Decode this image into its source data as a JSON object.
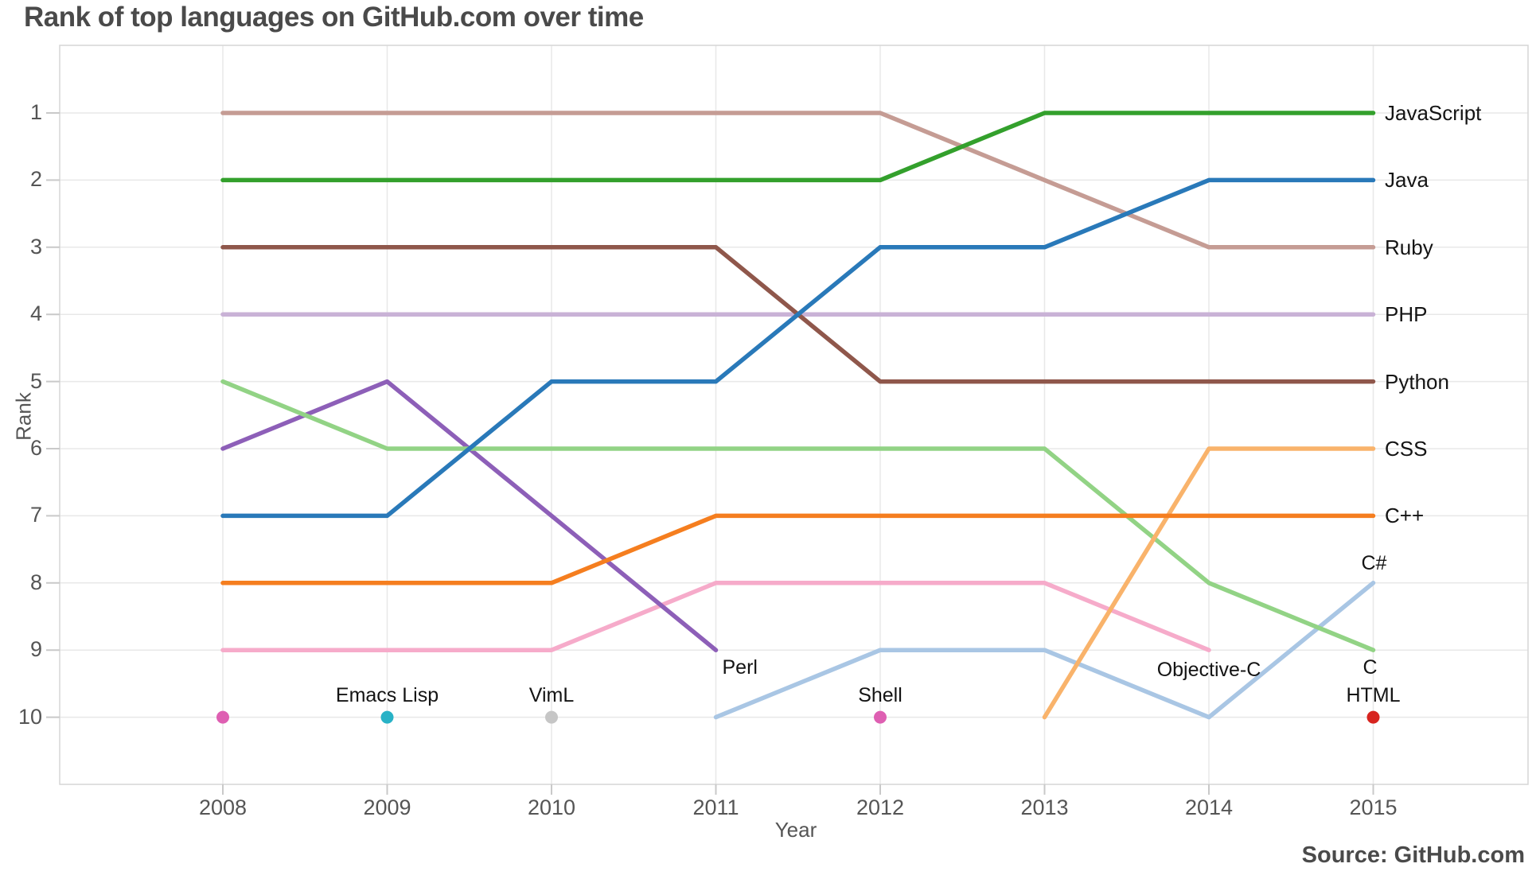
{
  "title": "Rank of top languages on GitHub.com over time",
  "source": "Source: GitHub.com",
  "styles": {
    "grid_color": "#e8e8e8",
    "frame_color": "#d6d6d6",
    "tick_color": "#c9c9c9",
    "axis_text_color": "#555555",
    "label_text_color": "#141414",
    "title_color": "#4a4a4a"
  },
  "chart_data": {
    "type": "line",
    "title": "Rank of top languages on GitHub.com over time",
    "xlabel": "Year",
    "ylabel": "Rank",
    "x_ticks": [
      2008,
      2009,
      2010,
      2011,
      2012,
      2013,
      2014,
      2015
    ],
    "y_ticks": [
      1,
      2,
      3,
      4,
      5,
      6,
      7,
      8,
      9,
      10
    ],
    "ylim": [
      1,
      10
    ],
    "y_inverted": true,
    "grid": true,
    "legend_position": "line-end-labels",
    "series": [
      {
        "name": "JavaScript",
        "color": "#33a02c",
        "label_placement": "right",
        "points": [
          [
            2008,
            2
          ],
          [
            2009,
            2
          ],
          [
            2010,
            2
          ],
          [
            2011,
            2
          ],
          [
            2012,
            2
          ],
          [
            2013,
            1
          ],
          [
            2014,
            1
          ],
          [
            2015,
            1
          ]
        ]
      },
      {
        "name": "Java",
        "color": "#2979b9",
        "label_placement": "right",
        "points": [
          [
            2008,
            7
          ],
          [
            2009,
            7
          ],
          [
            2010,
            5
          ],
          [
            2011,
            5
          ],
          [
            2012,
            3
          ],
          [
            2013,
            3
          ],
          [
            2014,
            2
          ],
          [
            2015,
            2
          ]
        ]
      },
      {
        "name": "Ruby",
        "color": "#c59c94",
        "label_placement": "right",
        "points": [
          [
            2008,
            1
          ],
          [
            2009,
            1
          ],
          [
            2010,
            1
          ],
          [
            2011,
            1
          ],
          [
            2012,
            1
          ],
          [
            2013,
            2
          ],
          [
            2014,
            3
          ],
          [
            2015,
            3
          ]
        ]
      },
      {
        "name": "PHP",
        "color": "#c9b2d6",
        "label_placement": "right",
        "points": [
          [
            2008,
            4
          ],
          [
            2009,
            4
          ],
          [
            2010,
            4
          ],
          [
            2011,
            4
          ],
          [
            2012,
            4
          ],
          [
            2013,
            4
          ],
          [
            2014,
            4
          ],
          [
            2015,
            4
          ]
        ]
      },
      {
        "name": "Python",
        "color": "#8f574b",
        "label_placement": "right",
        "points": [
          [
            2008,
            3
          ],
          [
            2009,
            3
          ],
          [
            2010,
            3
          ],
          [
            2011,
            3
          ],
          [
            2012,
            5
          ],
          [
            2013,
            5
          ],
          [
            2014,
            5
          ],
          [
            2015,
            5
          ]
        ]
      },
      {
        "name": "CSS",
        "color": "#f9b36b",
        "label_placement": "right",
        "points": [
          [
            2013,
            10
          ],
          [
            2014,
            6
          ],
          [
            2015,
            6
          ]
        ]
      },
      {
        "name": "C++",
        "color": "#f57e1f",
        "label_placement": "right",
        "points": [
          [
            2008,
            8
          ],
          [
            2009,
            8
          ],
          [
            2010,
            8
          ],
          [
            2011,
            7
          ],
          [
            2012,
            7
          ],
          [
            2013,
            7
          ],
          [
            2014,
            7
          ],
          [
            2015,
            7
          ]
        ]
      },
      {
        "name": "C#",
        "color": "#a9c6e4",
        "label_placement": "above",
        "points": [
          [
            2011,
            10
          ],
          [
            2012,
            9
          ],
          [
            2013,
            9
          ],
          [
            2014,
            10
          ],
          [
            2015,
            8
          ]
        ]
      },
      {
        "name": "C",
        "color": "#92d385",
        "label_placement": "below",
        "points": [
          [
            2008,
            5
          ],
          [
            2009,
            6
          ],
          [
            2010,
            6
          ],
          [
            2011,
            6
          ],
          [
            2012,
            6
          ],
          [
            2013,
            6
          ],
          [
            2014,
            8
          ],
          [
            2015,
            9
          ]
        ]
      },
      {
        "name": "Objective-C",
        "color": "#f6abca",
        "label_placement": "below-center",
        "points": [
          [
            2008,
            9
          ],
          [
            2009,
            9
          ],
          [
            2010,
            9
          ],
          [
            2011,
            8
          ],
          [
            2012,
            8
          ],
          [
            2013,
            8
          ],
          [
            2014,
            9
          ]
        ]
      },
      {
        "name": "Perl",
        "color": "#8d5fb8",
        "label_placement": "below",
        "label_dx": 8,
        "points": [
          [
            2008,
            6
          ],
          [
            2009,
            5
          ],
          [
            2010,
            7
          ],
          [
            2011,
            9
          ]
        ]
      }
    ],
    "markers": [
      {
        "label": "",
        "year": 2008,
        "rank": 10,
        "color": "#de5fb2"
      },
      {
        "label": "Emacs Lisp",
        "year": 2009,
        "rank": 10,
        "color": "#28b2c6"
      },
      {
        "label": "VimL",
        "year": 2010,
        "rank": 10,
        "color": "#c6c6c6"
      },
      {
        "label": "Shell",
        "year": 2012,
        "rank": 10,
        "color": "#de5fb2"
      },
      {
        "label": "HTML",
        "year": 2015,
        "rank": 10,
        "color": "#d7241f"
      }
    ]
  }
}
